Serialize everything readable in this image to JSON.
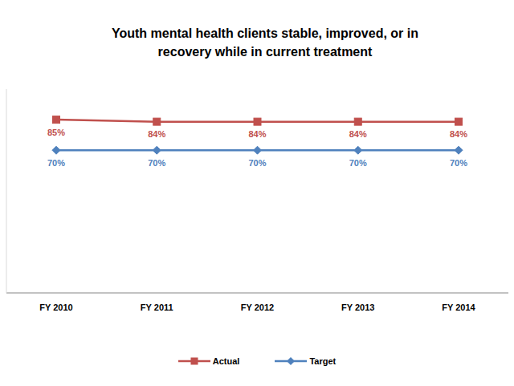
{
  "chart_data": {
    "type": "line",
    "title": "Youth mental health clients stable, improved, or in recovery while in current treatment",
    "categories": [
      "FY 2010",
      "FY 2011",
      "FY 2012",
      "FY 2013",
      "FY 2014"
    ],
    "series": [
      {
        "name": "Actual",
        "color": "#C0504D",
        "marker": "square",
        "values": [
          85,
          84,
          84,
          84,
          84
        ],
        "value_labels": [
          "85%",
          "84%",
          "84%",
          "84%",
          "84%"
        ]
      },
      {
        "name": "Target",
        "color": "#4F81BD",
        "marker": "diamond",
        "values": [
          70,
          70,
          70,
          70,
          70
        ],
        "value_labels": [
          "70%",
          "70%",
          "70%",
          "70%",
          "70%"
        ]
      }
    ],
    "ylim": [
      0,
      100
    ],
    "grid": false,
    "legend": "bottom",
    "data_labels": true,
    "tick_labels": "x"
  }
}
